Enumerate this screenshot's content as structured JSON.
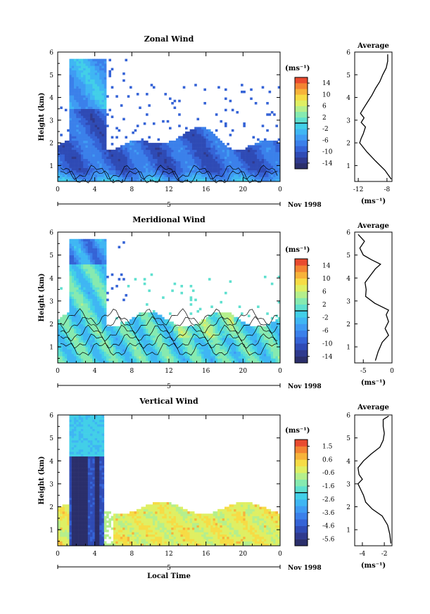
{
  "chart_data": [
    {
      "type": "heatmap",
      "title": "Zonal Wind",
      "ylabel": "Height (km)",
      "xlabel": "",
      "x_ticks": [
        "0",
        "4",
        "8",
        "12",
        "16",
        "20",
        "0"
      ],
      "y_ticks": [
        "1",
        "2",
        "3",
        "4",
        "5",
        "6"
      ],
      "xlim": [
        0,
        24
      ],
      "ylim": [
        0.3,
        6
      ],
      "date_label": "5",
      "month_label": "Nov 1998",
      "colorbar": {
        "unit": "(ms⁻¹)",
        "ticks": [
          "14",
          "10",
          "6",
          "2",
          "-2",
          "-6",
          "-10",
          "-14"
        ],
        "range": [
          -16,
          16
        ]
      },
      "average": {
        "title": "Average",
        "unit": "(ms⁻¹)",
        "x_ticks": [
          "-12",
          "-8"
        ],
        "xlim": [
          -12.5,
          -7.3
        ],
        "profile": [
          {
            "h": 0.4,
            "v": -7.4
          },
          {
            "h": 0.8,
            "v": -8.3
          },
          {
            "h": 1.2,
            "v": -9.6
          },
          {
            "h": 1.6,
            "v": -10.8
          },
          {
            "h": 2.0,
            "v": -11.8
          },
          {
            "h": 2.2,
            "v": -11.6
          },
          {
            "h": 2.4,
            "v": -11.3
          },
          {
            "h": 2.7,
            "v": -11.0
          },
          {
            "h": 2.9,
            "v": -11.6
          },
          {
            "h": 3.1,
            "v": -11.2
          },
          {
            "h": 3.3,
            "v": -11.7
          },
          {
            "h": 3.5,
            "v": -11.3
          },
          {
            "h": 3.8,
            "v": -10.7
          },
          {
            "h": 4.1,
            "v": -10.1
          },
          {
            "h": 4.4,
            "v": -9.6
          },
          {
            "h": 4.7,
            "v": -9.0
          },
          {
            "h": 5.0,
            "v": -8.6
          },
          {
            "h": 5.3,
            "v": -8.1
          },
          {
            "h": 5.6,
            "v": -7.9
          },
          {
            "h": 5.9,
            "v": -7.9
          }
        ]
      }
    },
    {
      "type": "heatmap",
      "title": "Meridional Wind",
      "ylabel": "Height (km)",
      "xlabel": "",
      "x_ticks": [
        "0",
        "4",
        "8",
        "12",
        "16",
        "20",
        "0"
      ],
      "y_ticks": [
        "1",
        "2",
        "3",
        "4",
        "5",
        "6"
      ],
      "xlim": [
        0,
        24
      ],
      "ylim": [
        0.3,
        6
      ],
      "date_label": "5",
      "month_label": "Nov 1998",
      "colorbar": {
        "unit": "(ms⁻¹)",
        "ticks": [
          "14",
          "10",
          "6",
          "2",
          "-2",
          "-6",
          "-10",
          "-14"
        ],
        "range": [
          -16,
          16
        ]
      },
      "average": {
        "title": "Average",
        "unit": "(ms⁻¹)",
        "x_ticks": [
          "-5",
          "0"
        ],
        "xlim": [
          -6.5,
          0
        ],
        "profile": [
          {
            "h": 0.4,
            "v": -2.9
          },
          {
            "h": 0.8,
            "v": -2.4
          },
          {
            "h": 1.2,
            "v": -1.7
          },
          {
            "h": 1.5,
            "v": -0.6
          },
          {
            "h": 1.8,
            "v": -1.2
          },
          {
            "h": 2.1,
            "v": -0.6
          },
          {
            "h": 2.4,
            "v": -1.0
          },
          {
            "h": 2.6,
            "v": -0.6
          },
          {
            "h": 2.9,
            "v": -3.0
          },
          {
            "h": 3.2,
            "v": -4.6
          },
          {
            "h": 3.5,
            "v": -4.5
          },
          {
            "h": 3.8,
            "v": -4.7
          },
          {
            "h": 4.1,
            "v": -3.8
          },
          {
            "h": 4.4,
            "v": -2.9
          },
          {
            "h": 4.6,
            "v": -2.0
          },
          {
            "h": 4.8,
            "v": -3.6
          },
          {
            "h": 5.0,
            "v": -5.0
          },
          {
            "h": 5.3,
            "v": -5.6
          },
          {
            "h": 5.6,
            "v": -4.8
          },
          {
            "h": 5.9,
            "v": -5.9
          }
        ]
      }
    },
    {
      "type": "heatmap",
      "title": "Vertical Wind",
      "ylabel": "Height (km)",
      "xlabel": "Local Time",
      "x_ticks": [
        "0",
        "4",
        "8",
        "12",
        "16",
        "20",
        "0"
      ],
      "y_ticks": [
        "1",
        "2",
        "3",
        "4",
        "5",
        "6"
      ],
      "xlim": [
        0,
        24
      ],
      "ylim": [
        0.3,
        6
      ],
      "date_label": "5",
      "month_label": "Nov 1998",
      "colorbar": {
        "unit": "(ms⁻¹)",
        "ticks": [
          "1.5",
          "0.6",
          "-0.6",
          "-1.6",
          "-2.6",
          "-3.6",
          "-4.6",
          "-5.6"
        ],
        "range": [
          -6,
          2
        ]
      },
      "average": {
        "title": "Average",
        "unit": "(ms⁻¹)",
        "x_ticks": [
          "-4",
          "-2"
        ],
        "xlim": [
          -4.7,
          -1.3
        ],
        "profile": [
          {
            "h": 0.4,
            "v": -1.4
          },
          {
            "h": 0.8,
            "v": -1.5
          },
          {
            "h": 1.2,
            "v": -1.7
          },
          {
            "h": 1.6,
            "v": -2.2
          },
          {
            "h": 1.9,
            "v": -3.1
          },
          {
            "h": 2.2,
            "v": -3.7
          },
          {
            "h": 2.5,
            "v": -3.9
          },
          {
            "h": 2.8,
            "v": -4.2
          },
          {
            "h": 3.0,
            "v": -4.4
          },
          {
            "h": 3.2,
            "v": -4.0
          },
          {
            "h": 3.4,
            "v": -4.3
          },
          {
            "h": 3.7,
            "v": -4.4
          },
          {
            "h": 4.0,
            "v": -3.9
          },
          {
            "h": 4.3,
            "v": -3.2
          },
          {
            "h": 4.6,
            "v": -2.4
          },
          {
            "h": 4.9,
            "v": -2.1
          },
          {
            "h": 5.2,
            "v": -2.0
          },
          {
            "h": 5.5,
            "v": -2.1
          },
          {
            "h": 5.8,
            "v": -2.1
          },
          {
            "h": 5.95,
            "v": -1.6
          }
        ]
      }
    }
  ]
}
